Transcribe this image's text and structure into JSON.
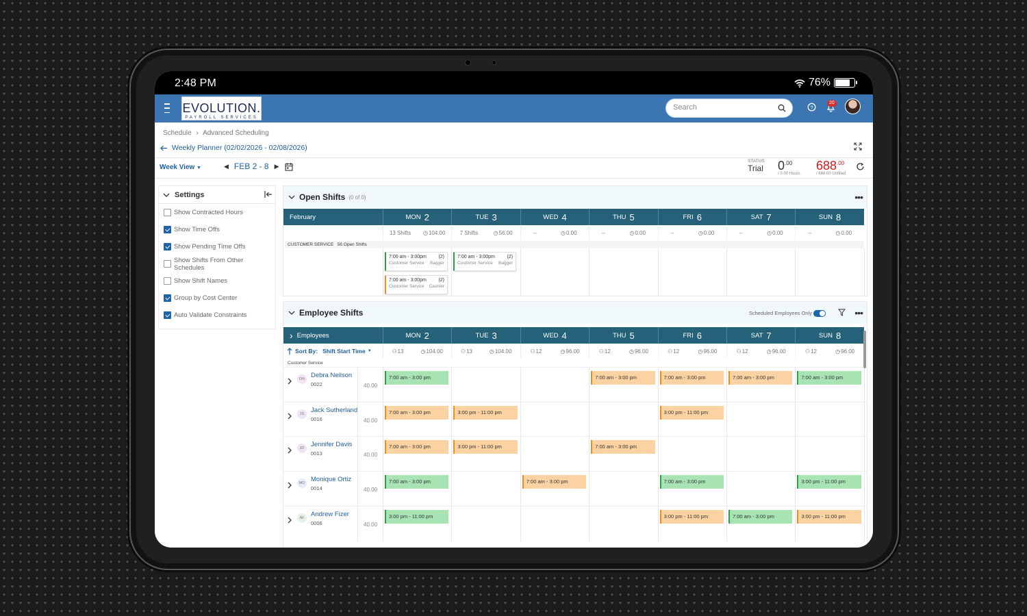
{
  "statusbar": {
    "time": "2:48 PM",
    "battery": "76%",
    "battery_level": 0.76
  },
  "brand": {
    "logo_main": "EVOLUTION.",
    "logo_sub": "PAYROLL SERVICES"
  },
  "search": {
    "placeholder": "Search"
  },
  "notifications": {
    "count": "20"
  },
  "breadcrumb": {
    "item1": "Schedule",
    "sep": "›",
    "item2": "Advanced Scheduling"
  },
  "planner": {
    "title": "Weekly Planner (02/02/2026 - 02/08/2026)"
  },
  "toolbar": {
    "view": "Week View",
    "range": "FEB 2 - 8",
    "status_label": "STATUS",
    "status_value": "Trial",
    "hours_main": "0",
    "hours_cents": ".00",
    "hours_sub": "/ 0.00 Hours",
    "unfilled_main": "688",
    "unfilled_cents": ".00",
    "unfilled_sub": "/ 688.00 Unfilled"
  },
  "settings": {
    "title": "Settings",
    "items": [
      {
        "label": "Show Contracted Hours",
        "checked": false
      },
      {
        "label": "Show Time Offs",
        "checked": true
      },
      {
        "label": "Show Pending Time Offs",
        "checked": true
      },
      {
        "label": "Show Shifts From Other Schedules",
        "checked": false
      },
      {
        "label": "Show Shift Names",
        "checked": false
      },
      {
        "label": "Group by Cost Center",
        "checked": true
      },
      {
        "label": "Auto Validate Constraints",
        "checked": true
      }
    ]
  },
  "open_shifts": {
    "title": "Open Shifts",
    "count": "(0 of 0)",
    "month": "February",
    "days": [
      {
        "dow": "MON",
        "num": "2"
      },
      {
        "dow": "TUE",
        "num": "3"
      },
      {
        "dow": "WED",
        "num": "4"
      },
      {
        "dow": "THU",
        "num": "5"
      },
      {
        "dow": "FRI",
        "num": "6"
      },
      {
        "dow": "SAT",
        "num": "7"
      },
      {
        "dow": "SUN",
        "num": "8"
      }
    ],
    "summary": [
      {
        "shifts": "13 Shifts",
        "hours": "104.00"
      },
      {
        "shifts": "7 Shifts",
        "hours": "56.00"
      },
      {
        "shifts": "--",
        "hours": "0.00"
      },
      {
        "shifts": "--",
        "hours": "0.00"
      },
      {
        "shifts": "--",
        "hours": "0.00"
      },
      {
        "shifts": "--",
        "hours": "0.00"
      },
      {
        "shifts": "--",
        "hours": "0.00"
      }
    ],
    "group_label": "CUSTOMER SERVICE",
    "group_count": "56 Open Shifts",
    "cards": [
      {
        "time": "7:00 am - 3:00pm",
        "qty": "(2)",
        "dept": "Customer Service",
        "role": "Bagger",
        "color": "#2e9e47"
      },
      {
        "time": "7:00 am - 3:00pm",
        "qty": "(2)",
        "dept": "Customer Service",
        "role": "Bagger",
        "color": "#2e9e47"
      },
      {
        "time": "7:00 am - 3:00pm",
        "qty": "(2)",
        "dept": "Customer Service",
        "role": "Cashier",
        "color": "#ef8c1b"
      }
    ]
  },
  "employee_shifts": {
    "title": "Employee Shifts",
    "toggle_label": "Scheduled Employees Only",
    "first_col": "Employees",
    "sort_label": "Sort By:",
    "sort_value": "Shift Start Time",
    "group": "Customer Service",
    "summary": [
      {
        "emp": "13",
        "hours": "104.00"
      },
      {
        "emp": "13",
        "hours": "104.00"
      },
      {
        "emp": "12",
        "hours": "96.00"
      },
      {
        "emp": "12",
        "hours": "96.00"
      },
      {
        "emp": "12",
        "hours": "96.00"
      },
      {
        "emp": "12",
        "hours": "96.00"
      },
      {
        "emp": "12",
        "hours": "96.00"
      }
    ],
    "employees": [
      {
        "name": "Debra Neilson",
        "id": "0022",
        "initials": "DN",
        "hours": "40.00"
      },
      {
        "name": "Jack Sutherland",
        "id": "0016",
        "initials": "JS",
        "hours": "40.00"
      },
      {
        "name": "Jennifer Davis",
        "id": "0013",
        "initials": "JD",
        "hours": "40.00"
      },
      {
        "name": "Monique Ortiz",
        "id": "0014",
        "initials": "MO",
        "hours": "40.00"
      },
      {
        "name": "Andrew Fizer",
        "id": "0006",
        "initials": "AF",
        "hours": "40.00"
      }
    ]
  },
  "shifts": {
    "g1": "7:00 am - 3:00 pm",
    "o1": "7:00 am - 3:00 pm",
    "o2": "7:00 am - 3:00 pm",
    "o3": "7:00 am - 3:00 pm",
    "g2": "7:00 am - 3:00 pm",
    "o4": "7:00 am - 3:00 pm",
    "o5": "3:00 pm - 11:00 pm",
    "o6": "3:00 pm - 11:00 pm",
    "o7": "7:00 am - 3:00 pm",
    "o8": "3:00 pm - 11:00 pm",
    "o9": "7:00 am - 3:00 pm",
    "g3": "7:00 am - 3:00 pm",
    "o10": "7:00 am - 3:00 pm",
    "g4": "7:00 am - 3:00 pm",
    "g5": "3:00 pm - 11:00 pm",
    "g6": "3:00 pm - 11:00 pm",
    "o11": "3:00 pm - 11:00 pm",
    "g7": "7:00 am - 3:00 pm",
    "o12": "3:00 pm - 11:00 pm"
  }
}
